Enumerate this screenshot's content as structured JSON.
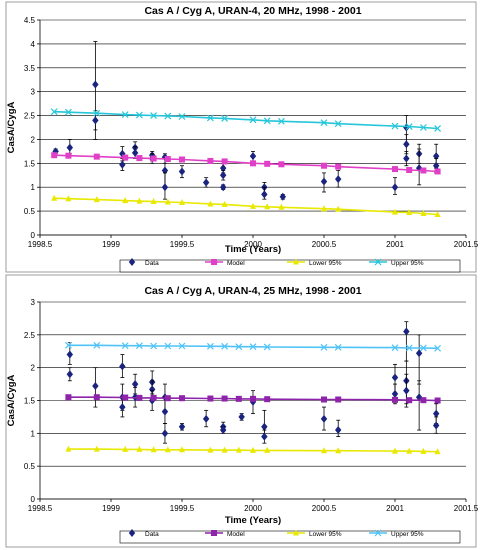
{
  "chart_data": [
    {
      "type": "scatter",
      "title": "Cas A / Cyg A, URAN-4, 20 MHz, 1998 - 2001",
      "xlabel": "Time (Years)",
      "ylabel": "CasA/CygA",
      "xlim": [
        1998.5,
        2001.5
      ],
      "ylim": [
        0,
        4.5
      ],
      "xticks": [
        "1998.5",
        "1999",
        "1999.5",
        "2000",
        "2000.5",
        "2001",
        "2001.5"
      ],
      "yticks": [
        "0",
        "0.5",
        "1",
        "1.5",
        "2",
        "2.5",
        "3",
        "3.5",
        "4",
        "4.5"
      ],
      "grid": "horizontal",
      "legend": {
        "placement": "bottom",
        "entries": [
          "Data",
          "Model",
          "Lower 95%",
          "Upper 95%"
        ]
      },
      "colors": {
        "data": "#1a237e",
        "model": "#e040c8",
        "lower": "#e8e800",
        "upper": "#26c6da"
      },
      "series": [
        {
          "name": "Data",
          "kind": "points",
          "points": [
            {
              "x": 1998.61,
              "y": 1.75,
              "lo": 1.7,
              "hi": 1.8
            },
            {
              "x": 1998.71,
              "y": 1.83,
              "lo": 1.7,
              "hi": 2.0
            },
            {
              "x": 1998.89,
              "y": 3.15,
              "lo": 2.2,
              "hi": 4.05
            },
            {
              "x": 1998.89,
              "y": 2.4,
              "lo": 2.0,
              "hi": 2.6
            },
            {
              "x": 1999.08,
              "y": 1.7,
              "lo": 1.55,
              "hi": 1.85
            },
            {
              "x": 1999.08,
              "y": 1.47,
              "lo": 1.35,
              "hi": 1.6
            },
            {
              "x": 1999.17,
              "y": 1.83,
              "lo": 1.7,
              "hi": 1.95
            },
            {
              "x": 1999.17,
              "y": 1.72,
              "lo": 1.6,
              "hi": 1.85
            },
            {
              "x": 1999.29,
              "y": 1.67,
              "lo": 1.55,
              "hi": 1.75
            },
            {
              "x": 1999.29,
              "y": 1.6,
              "lo": 1.5,
              "hi": 1.7
            },
            {
              "x": 1999.38,
              "y": 1.63,
              "lo": 1.5,
              "hi": 1.7
            },
            {
              "x": 1999.38,
              "y": 1.35,
              "lo": 1.0,
              "hi": 1.6
            },
            {
              "x": 1999.38,
              "y": 1.0,
              "lo": 0.75,
              "hi": 1.3
            },
            {
              "x": 1999.5,
              "y": 1.33,
              "lo": 1.2,
              "hi": 1.45
            },
            {
              "x": 1999.67,
              "y": 1.1,
              "lo": 1.0,
              "hi": 1.2
            },
            {
              "x": 1999.79,
              "y": 1.4,
              "lo": 1.3,
              "hi": 1.55
            },
            {
              "x": 1999.79,
              "y": 1.25,
              "lo": 1.15,
              "hi": 1.35
            },
            {
              "x": 1999.79,
              "y": 1.0,
              "lo": 0.95,
              "hi": 1.05
            },
            {
              "x": 2000.0,
              "y": 1.65,
              "lo": 1.55,
              "hi": 1.75
            },
            {
              "x": 2000.08,
              "y": 1.0,
              "lo": 0.85,
              "hi": 1.1
            },
            {
              "x": 2000.08,
              "y": 0.85,
              "lo": 0.75,
              "hi": 1.0
            },
            {
              "x": 2000.21,
              "y": 0.8,
              "lo": 0.75,
              "hi": 0.85
            },
            {
              "x": 2000.5,
              "y": 1.12,
              "lo": 0.9,
              "hi": 1.3
            },
            {
              "x": 2000.6,
              "y": 1.17,
              "lo": 1.0,
              "hi": 1.35
            },
            {
              "x": 2001.0,
              "y": 1.0,
              "lo": 0.85,
              "hi": 1.2
            },
            {
              "x": 2001.08,
              "y": 2.25,
              "lo": 1.9,
              "hi": 2.5
            },
            {
              "x": 2001.08,
              "y": 1.9,
              "lo": 1.7,
              "hi": 2.1
            },
            {
              "x": 2001.08,
              "y": 1.6,
              "lo": 1.45,
              "hi": 1.75
            },
            {
              "x": 2001.17,
              "y": 1.7,
              "lo": 1.5,
              "hi": 1.9
            },
            {
              "x": 2001.17,
              "y": 1.4,
              "lo": 1.05,
              "hi": 1.8
            },
            {
              "x": 2001.29,
              "y": 1.65,
              "lo": 1.4,
              "hi": 1.9
            },
            {
              "x": 2001.29,
              "y": 1.45,
              "lo": 1.3,
              "hi": 1.6
            }
          ]
        },
        {
          "name": "Model",
          "kind": "line",
          "x": [
            1998.6,
            1998.7,
            1998.9,
            1999.1,
            1999.2,
            1999.3,
            1999.4,
            1999.5,
            1999.7,
            1999.8,
            2000.0,
            2000.1,
            2000.2,
            2000.5,
            2000.6,
            2001.0,
            2001.1,
            2001.2,
            2001.3
          ],
          "y": [
            1.67,
            1.66,
            1.64,
            1.62,
            1.61,
            1.6,
            1.59,
            1.58,
            1.55,
            1.54,
            1.5,
            1.49,
            1.48,
            1.45,
            1.43,
            1.38,
            1.36,
            1.35,
            1.33
          ]
        },
        {
          "name": "Lower 95%",
          "kind": "line",
          "x": [
            1998.6,
            1998.7,
            1998.9,
            1999.1,
            1999.2,
            1999.3,
            1999.4,
            1999.5,
            1999.7,
            1999.8,
            2000.0,
            2000.1,
            2000.2,
            2000.5,
            2000.6,
            2001.0,
            2001.1,
            2001.2,
            2001.3
          ],
          "y": [
            0.77,
            0.76,
            0.74,
            0.72,
            0.71,
            0.7,
            0.69,
            0.68,
            0.65,
            0.64,
            0.6,
            0.59,
            0.58,
            0.55,
            0.54,
            0.48,
            0.47,
            0.45,
            0.43
          ]
        },
        {
          "name": "Upper 95%",
          "kind": "line",
          "x": [
            1998.6,
            1998.7,
            1998.9,
            1999.1,
            1999.2,
            1999.3,
            1999.4,
            1999.5,
            1999.7,
            1999.8,
            2000.0,
            2000.1,
            2000.2,
            2000.5,
            2000.6,
            2001.0,
            2001.1,
            2001.2,
            2001.3
          ],
          "y": [
            2.58,
            2.57,
            2.55,
            2.52,
            2.51,
            2.5,
            2.49,
            2.48,
            2.45,
            2.44,
            2.41,
            2.39,
            2.38,
            2.35,
            2.33,
            2.28,
            2.27,
            2.25,
            2.23
          ]
        }
      ]
    },
    {
      "type": "scatter",
      "title": "Cas A / Cyg A, URAN-4, 25 MHz, 1998 - 2001",
      "xlabel": "Time (Years)",
      "ylabel": "CasA/CygA",
      "xlim": [
        1998.5,
        2001.5
      ],
      "ylim": [
        0,
        3
      ],
      "xticks": [
        "1998.5",
        "1999",
        "1999.5",
        "2000",
        "2000.5",
        "2001",
        "2001.5"
      ],
      "yticks": [
        "0",
        "0.5",
        "1",
        "1.5",
        "2",
        "2.5",
        "3"
      ],
      "grid": "horizontal",
      "legend": {
        "placement": "bottom",
        "entries": [
          "Data",
          "Model",
          "Lower 95%",
          "Upper 95%"
        ]
      },
      "colors": {
        "data": "#1a237e",
        "model": "#8e24aa",
        "lower": "#e8e800",
        "upper": "#4fc3f7"
      },
      "series": [
        {
          "name": "Data",
          "kind": "points",
          "points": [
            {
              "x": 1998.71,
              "y": 2.2,
              "lo": 2.05,
              "hi": 2.38
            },
            {
              "x": 1998.71,
              "y": 1.9,
              "lo": 1.8,
              "hi": 2.0
            },
            {
              "x": 1998.89,
              "y": 1.72,
              "lo": 1.4,
              "hi": 2.0
            },
            {
              "x": 1999.08,
              "y": 2.02,
              "lo": 1.85,
              "hi": 2.2
            },
            {
              "x": 1999.08,
              "y": 1.55,
              "lo": 1.35,
              "hi": 1.75
            },
            {
              "x": 1999.08,
              "y": 1.4,
              "lo": 1.25,
              "hi": 1.55
            },
            {
              "x": 1999.17,
              "y": 1.75,
              "lo": 1.6,
              "hi": 1.9
            },
            {
              "x": 1999.17,
              "y": 1.55,
              "lo": 1.4,
              "hi": 1.7
            },
            {
              "x": 1999.29,
              "y": 1.78,
              "lo": 1.6,
              "hi": 1.95
            },
            {
              "x": 1999.29,
              "y": 1.67,
              "lo": 1.5,
              "hi": 1.8
            },
            {
              "x": 1999.29,
              "y": 1.5,
              "lo": 1.35,
              "hi": 1.65
            },
            {
              "x": 1999.38,
              "y": 1.55,
              "lo": 1.35,
              "hi": 1.75
            },
            {
              "x": 1999.38,
              "y": 1.33,
              "lo": 1.15,
              "hi": 1.55
            },
            {
              "x": 1999.38,
              "y": 1.0,
              "lo": 0.85,
              "hi": 1.15
            },
            {
              "x": 1999.5,
              "y": 1.1,
              "lo": 1.05,
              "hi": 1.15
            },
            {
              "x": 1999.67,
              "y": 1.22,
              "lo": 1.1,
              "hi": 1.35
            },
            {
              "x": 1999.79,
              "y": 1.1,
              "lo": 1.03,
              "hi": 1.17
            },
            {
              "x": 1999.79,
              "y": 1.05,
              "lo": 1.0,
              "hi": 1.1
            },
            {
              "x": 1999.92,
              "y": 1.25,
              "lo": 1.2,
              "hi": 1.3
            },
            {
              "x": 2000.0,
              "y": 1.48,
              "lo": 1.3,
              "hi": 1.65
            },
            {
              "x": 2000.08,
              "y": 1.1,
              "lo": 0.95,
              "hi": 1.35
            },
            {
              "x": 2000.08,
              "y": 0.95,
              "lo": 0.85,
              "hi": 1.05
            },
            {
              "x": 2000.5,
              "y": 1.22,
              "lo": 1.05,
              "hi": 1.4
            },
            {
              "x": 2000.6,
              "y": 1.05,
              "lo": 0.95,
              "hi": 1.2
            },
            {
              "x": 2001.0,
              "y": 1.85,
              "lo": 1.6,
              "hi": 2.05
            },
            {
              "x": 2001.0,
              "y": 1.6,
              "lo": 1.45,
              "hi": 1.75
            },
            {
              "x": 2001.08,
              "y": 2.55,
              "lo": 2.1,
              "hi": 2.7
            },
            {
              "x": 2001.08,
              "y": 1.8,
              "lo": 1.45,
              "hi": 2.1
            },
            {
              "x": 2001.08,
              "y": 1.65,
              "lo": 1.4,
              "hi": 1.9
            },
            {
              "x": 2001.17,
              "y": 2.22,
              "lo": 1.75,
              "hi": 2.5
            },
            {
              "x": 2001.17,
              "y": 1.55,
              "lo": 1.05,
              "hi": 1.8
            },
            {
              "x": 2001.29,
              "y": 1.3,
              "lo": 1.15,
              "hi": 1.45
            },
            {
              "x": 2001.29,
              "y": 1.12,
              "lo": 1.0,
              "hi": 1.25
            }
          ]
        },
        {
          "name": "Model",
          "kind": "line",
          "x": [
            1998.7,
            1998.9,
            1999.1,
            1999.2,
            1999.3,
            1999.4,
            1999.5,
            1999.7,
            1999.8,
            1999.9,
            2000.0,
            2000.1,
            2000.5,
            2000.6,
            2001.0,
            2001.1,
            2001.2,
            2001.3
          ],
          "y": [
            1.55,
            1.55,
            1.545,
            1.54,
            1.54,
            1.535,
            1.535,
            1.53,
            1.53,
            1.525,
            1.525,
            1.52,
            1.515,
            1.515,
            1.51,
            1.505,
            1.505,
            1.5
          ]
        },
        {
          "name": "Lower 95%",
          "kind": "line",
          "x": [
            1998.7,
            1998.9,
            1999.1,
            1999.2,
            1999.3,
            1999.4,
            1999.5,
            1999.7,
            1999.8,
            1999.9,
            2000.0,
            2000.1,
            2000.5,
            2000.6,
            2001.0,
            2001.1,
            2001.2,
            2001.3
          ],
          "y": [
            0.76,
            0.76,
            0.755,
            0.755,
            0.75,
            0.75,
            0.75,
            0.745,
            0.745,
            0.745,
            0.74,
            0.74,
            0.735,
            0.735,
            0.73,
            0.73,
            0.725,
            0.72
          ]
        },
        {
          "name": "Upper 95%",
          "kind": "line",
          "x": [
            1998.7,
            1998.9,
            1999.1,
            1999.2,
            1999.3,
            1999.4,
            1999.5,
            1999.7,
            1999.8,
            1999.9,
            2000.0,
            2000.1,
            2000.5,
            2000.6,
            2001.0,
            2001.1,
            2001.2,
            2001.3
          ],
          "y": [
            2.34,
            2.34,
            2.335,
            2.335,
            2.33,
            2.33,
            2.33,
            2.325,
            2.325,
            2.32,
            2.32,
            2.315,
            2.31,
            2.31,
            2.305,
            2.3,
            2.3,
            2.295
          ]
        }
      ]
    }
  ]
}
